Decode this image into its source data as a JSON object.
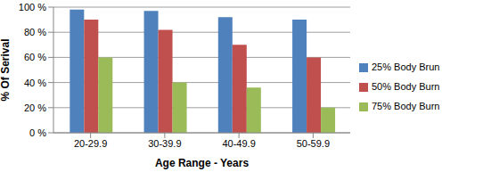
{
  "chart_data": {
    "type": "bar",
    "x_label": "Age Range - Years",
    "y_label": "% Of Serival",
    "categories": [
      "20-29.9",
      "30-39.9",
      "40-49.9",
      "50-59.9"
    ],
    "series": [
      {
        "name": "25% Body Brun",
        "color": "#4f81bd",
        "values": [
          98,
          97,
          92,
          90
        ]
      },
      {
        "name": "50% Body Burn",
        "color": "#c0504d",
        "values": [
          90,
          82,
          70,
          60
        ]
      },
      {
        "name": "75% Body Burn",
        "color": "#9bbb59",
        "values": [
          60,
          40,
          36,
          20
        ]
      }
    ],
    "ylim": [
      0,
      100
    ],
    "yticks": [
      {
        "value": 0,
        "label": "0 %"
      },
      {
        "value": 20,
        "label": "20 %"
      },
      {
        "value": 40,
        "label": "40 %"
      },
      {
        "value": 60,
        "label": "60 %"
      },
      {
        "value": 80,
        "label": "80 %"
      },
      {
        "value": 100,
        "label": "100 %"
      }
    ],
    "grid": true,
    "legend": "right"
  }
}
